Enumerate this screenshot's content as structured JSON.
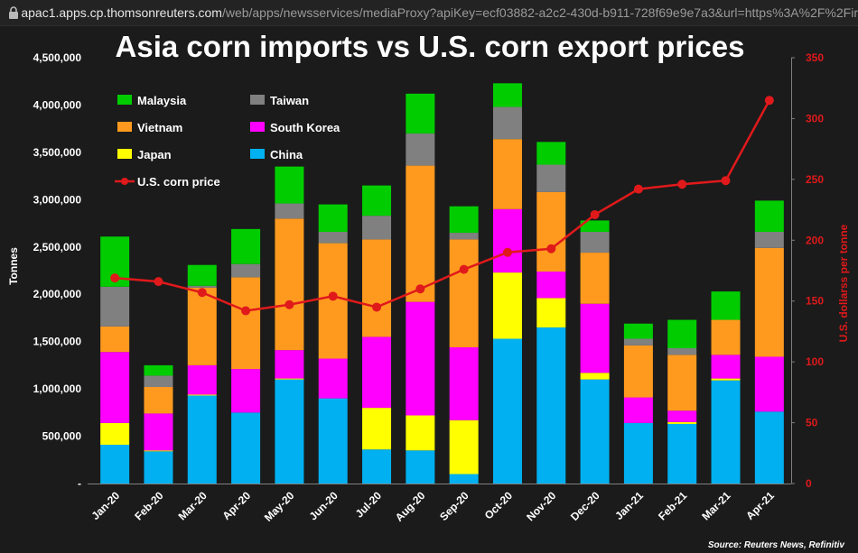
{
  "browser": {
    "url_host": "apac1.apps.cp.thomsonreuters.com",
    "url_path": "/web/apps/newsservices/mediaProxy?apiKey=ecf03882-a2c2-430d-b911-728f69e9e7a3&url=https%3A%2F%2Fir"
  },
  "chart_data": {
    "type": "bar",
    "stacked": true,
    "title": "Asia corn imports vs U.S. corn export prices",
    "ylabel_left": "Tonnes",
    "ylabel_right": "U.S. dollarss per tonne",
    "source": "Source: Reuters News, Refinitiv",
    "ylim_left": [
      0,
      4500000
    ],
    "ylim_right": [
      0,
      350
    ],
    "left_ticks": [
      "-",
      "500,000",
      "1,000,000",
      "1,500,000",
      "2,000,000",
      "2,500,000",
      "3,000,000",
      "3,500,000",
      "4,000,000",
      "4,500,000"
    ],
    "right_ticks": [
      "0",
      "50",
      "100",
      "150",
      "200",
      "250",
      "300",
      "350"
    ],
    "categories": [
      "Jan-20",
      "Feb-20",
      "Mar-20",
      "Apr-20",
      "May-20",
      "Jun-20",
      "Jul-20",
      "Aug-20",
      "Sep-20",
      "Oct-20",
      "Nov-20",
      "Dec-20",
      "Jan-21",
      "Feb-21",
      "Mar-21",
      "Apr-21"
    ],
    "series": [
      {
        "name": "China",
        "color": "#00b0f0",
        "values": [
          410000,
          340000,
          930000,
          750000,
          1100000,
          900000,
          360000,
          350000,
          100000,
          1530000,
          1650000,
          1100000,
          640000,
          630000,
          1090000,
          760000
        ]
      },
      {
        "name": "Japan",
        "color": "#ffff00",
        "values": [
          230000,
          10000,
          10000,
          0,
          10000,
          0,
          440000,
          370000,
          570000,
          700000,
          310000,
          70000,
          0,
          20000,
          20000,
          0
        ]
      },
      {
        "name": "South Korea",
        "color": "#ff00ff",
        "values": [
          750000,
          390000,
          310000,
          460000,
          300000,
          420000,
          750000,
          1200000,
          770000,
          670000,
          280000,
          730000,
          270000,
          120000,
          250000,
          580000
        ]
      },
      {
        "name": "Vietnam",
        "color": "#ff9a1f",
        "values": [
          270000,
          280000,
          820000,
          970000,
          1390000,
          1220000,
          1030000,
          1440000,
          1140000,
          740000,
          840000,
          540000,
          550000,
          590000,
          370000,
          1150000
        ]
      },
      {
        "name": "Taiwan",
        "color": "#808080",
        "values": [
          420000,
          120000,
          20000,
          140000,
          160000,
          120000,
          250000,
          340000,
          70000,
          340000,
          290000,
          220000,
          70000,
          70000,
          0,
          170000
        ]
      },
      {
        "name": "Malaysia",
        "color": "#00cc00",
        "values": [
          530000,
          110000,
          220000,
          370000,
          390000,
          290000,
          320000,
          420000,
          280000,
          250000,
          240000,
          120000,
          160000,
          300000,
          300000,
          330000
        ]
      }
    ],
    "line_series": {
      "name": "U.S. corn price",
      "color": "#e0191b",
      "axis": "right",
      "values": [
        169,
        166,
        157,
        142,
        147,
        154,
        145,
        160,
        176,
        190,
        193,
        221,
        242,
        246,
        249,
        315
      ]
    },
    "legend": [
      {
        "name": "Malaysia",
        "color": "#00cc00",
        "type": "box"
      },
      {
        "name": "Taiwan",
        "color": "#808080",
        "type": "box"
      },
      {
        "name": "Vietnam",
        "color": "#ff9a1f",
        "type": "box"
      },
      {
        "name": "South Korea",
        "color": "#ff00ff",
        "type": "box"
      },
      {
        "name": "Japan",
        "color": "#ffff00",
        "type": "box"
      },
      {
        "name": "China",
        "color": "#00b0f0",
        "type": "box"
      },
      {
        "name": "U.S. corn price",
        "color": "#e0191b",
        "type": "line"
      }
    ],
    "legend_position": "top-left",
    "grid": false,
    "axis_color": "#808080"
  }
}
